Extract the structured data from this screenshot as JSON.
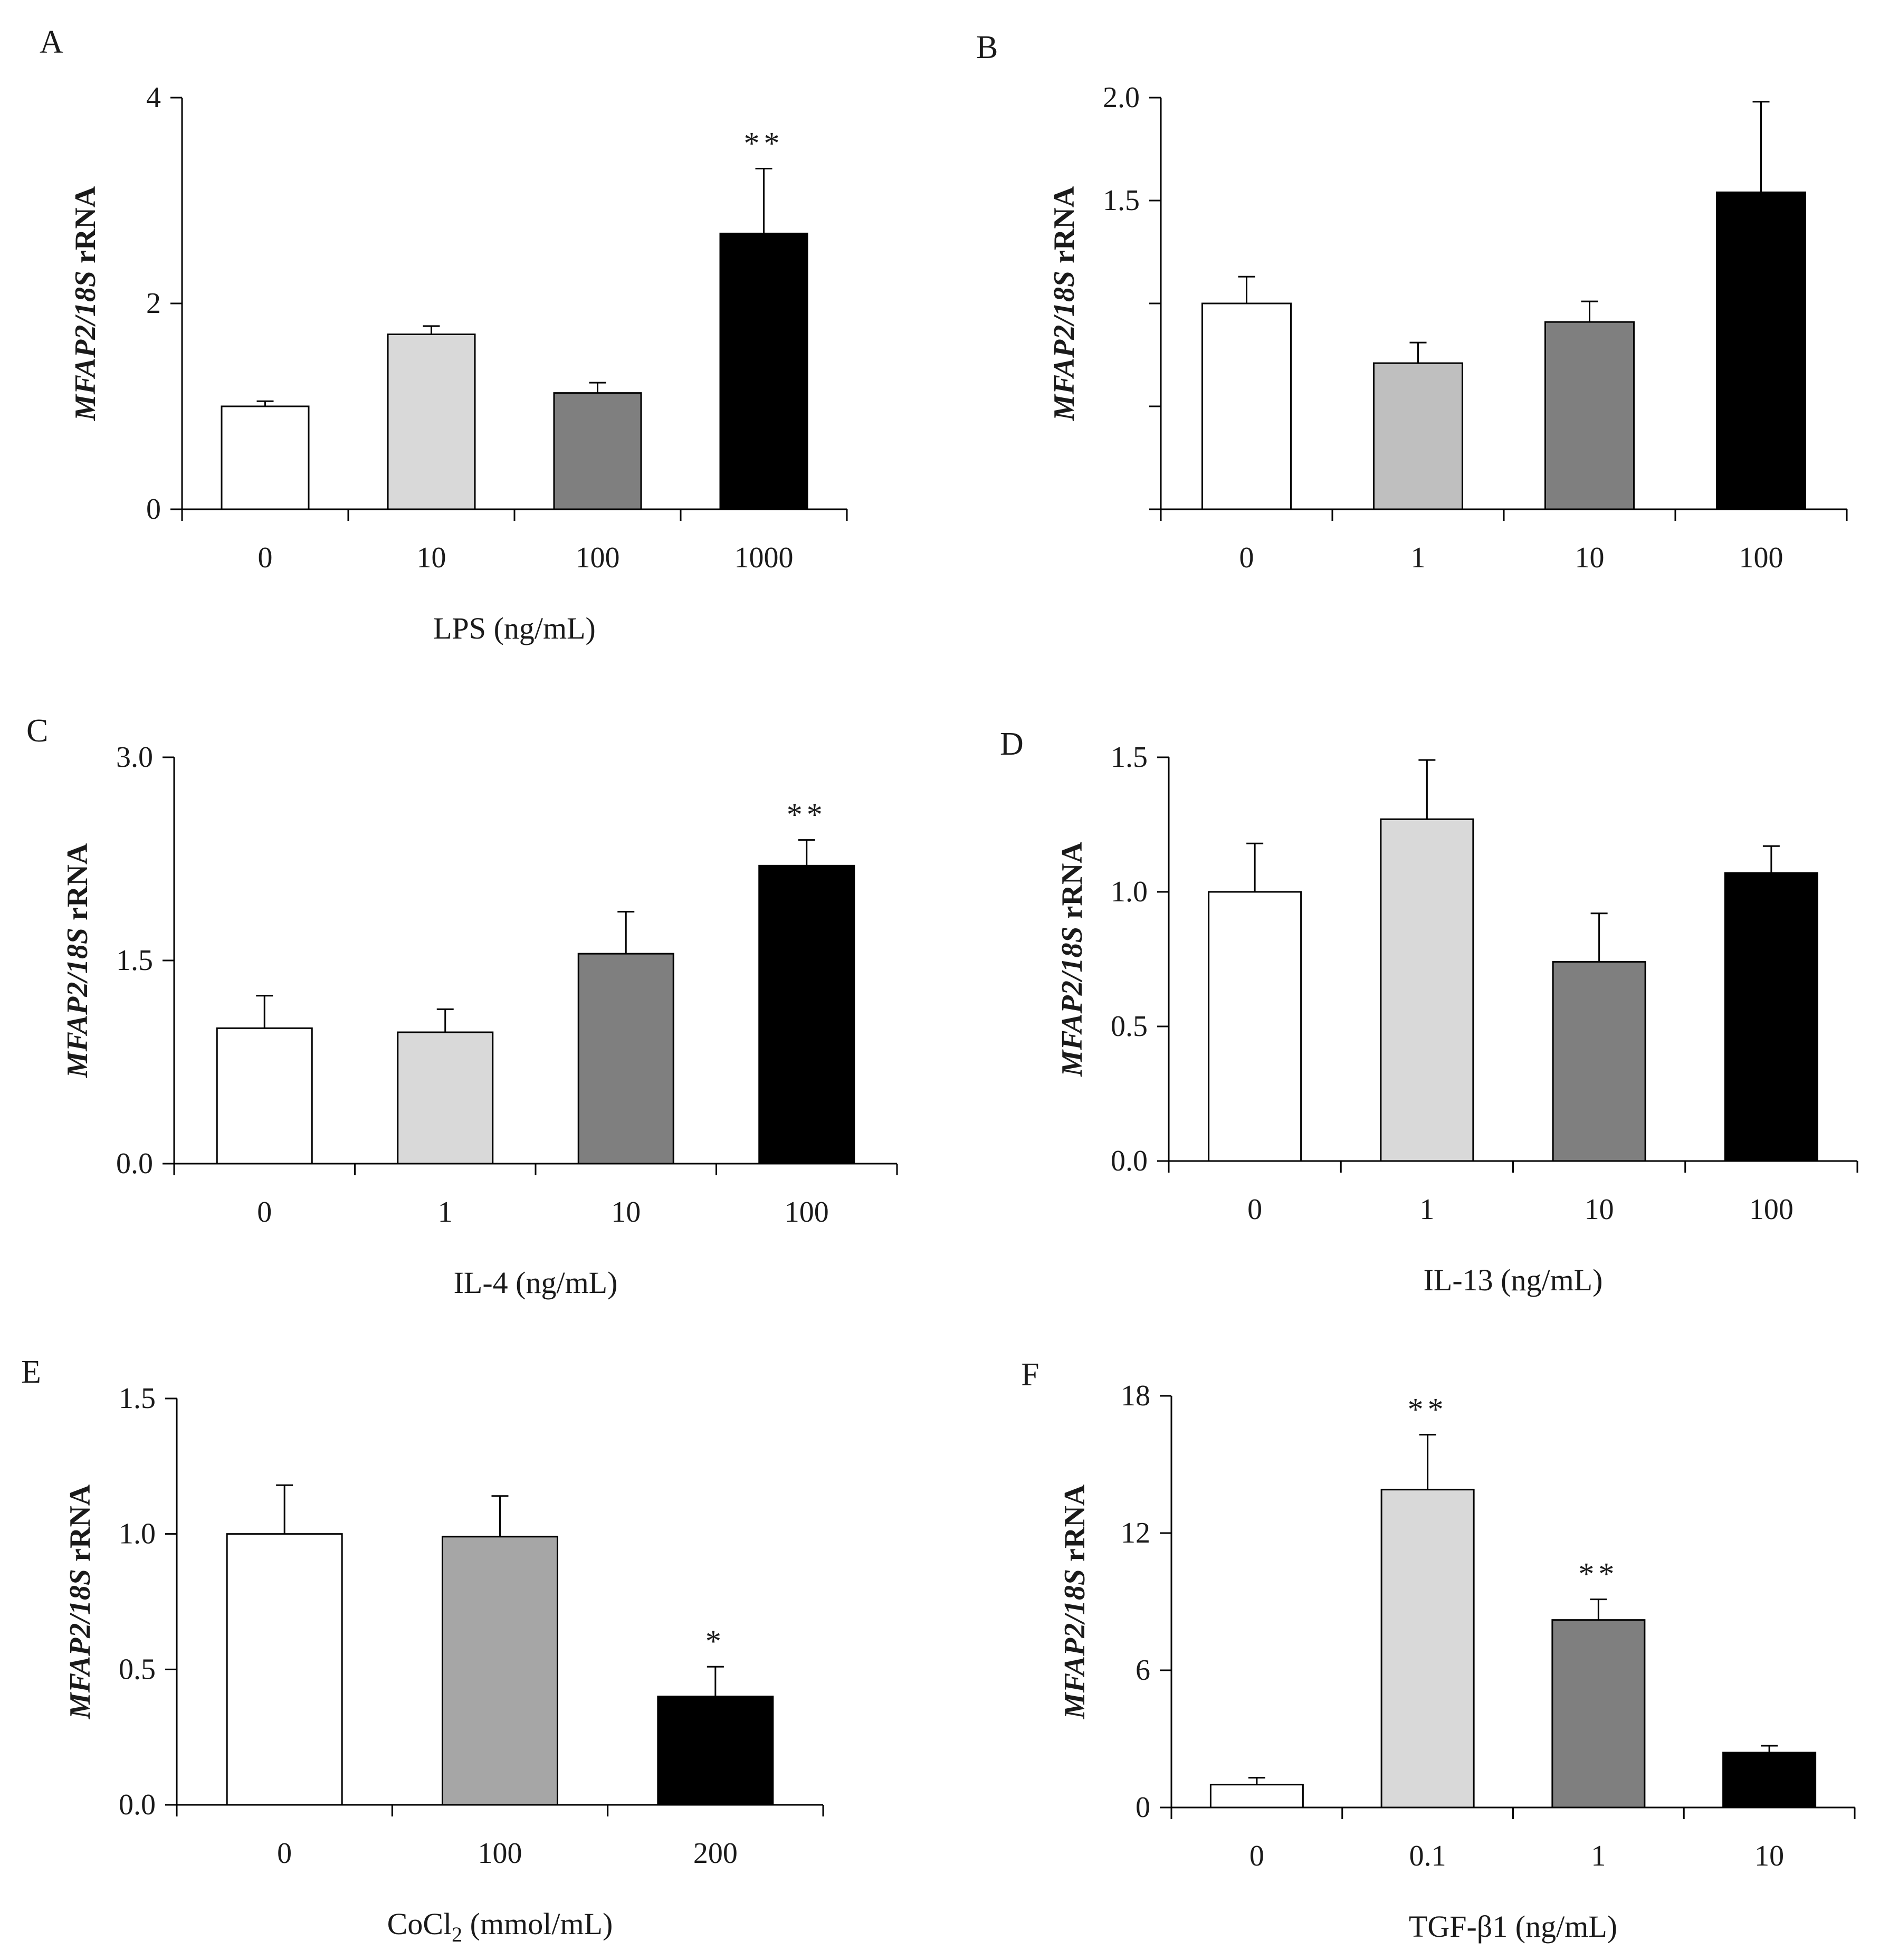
{
  "chart_data": [
    {
      "panel_label": "A",
      "type": "bar",
      "categories": [
        "0",
        "10",
        "100",
        "1000"
      ],
      "values": [
        1.0,
        1.7,
        1.13,
        2.68
      ],
      "errors": [
        0.05,
        0.08,
        0.1,
        0.63
      ],
      "significance": [
        "",
        "",
        "",
        "**"
      ],
      "colors": [
        "#ffffff",
        "#d9d9d9",
        "#7f7f7f",
        "#000000"
      ],
      "ylim": [
        0,
        4
      ],
      "yticks": [
        0,
        2,
        4
      ],
      "ytick_labels": [
        "0",
        "2",
        "4"
      ],
      "ylabel_italic": "MFAP2/18S",
      "ylabel_rest": " rRNA",
      "xlabel": "LPS (ng/mL)",
      "grid": false
    },
    {
      "panel_label": "B",
      "type": "bar",
      "categories": [
        "0",
        "1",
        "10",
        "100"
      ],
      "values": [
        1.0,
        0.71,
        0.91,
        1.54
      ],
      "errors": [
        0.13,
        0.1,
        0.1,
        0.44
      ],
      "significance": [
        "",
        "",
        "",
        ""
      ],
      "colors": [
        "#ffffff",
        "#bfbfbf",
        "#7f7f7f",
        "#000000"
      ],
      "ylim": [
        0,
        2.0
      ],
      "yticks": [
        0,
        0.5,
        1.0,
        1.5,
        2.0
      ],
      "ytick_labels": [
        "",
        "",
        "",
        "1.5",
        "2.0"
      ],
      "ylabel_italic": "MFAP2/18S",
      "ylabel_rest": " rRNA",
      "xlabel": "",
      "grid": false
    },
    {
      "panel_label": "C",
      "type": "bar",
      "categories": [
        "0",
        "1",
        "10",
        "100"
      ],
      "values": [
        1.0,
        0.97,
        1.55,
        2.2
      ],
      "errors": [
        0.24,
        0.17,
        0.31,
        0.19
      ],
      "significance": [
        "",
        "",
        "",
        "**"
      ],
      "colors": [
        "#ffffff",
        "#d9d9d9",
        "#7f7f7f",
        "#000000"
      ],
      "ylim": [
        0,
        3.0
      ],
      "yticks": [
        0,
        1.5,
        3.0
      ],
      "ytick_labels": [
        "0.0",
        "1.5",
        "3.0"
      ],
      "ylabel_italic": "MFAP2/18S",
      "ylabel_rest": " rRNA",
      "xlabel": "IL-4 (ng/mL)",
      "grid": false
    },
    {
      "panel_label": "D",
      "type": "bar",
      "categories": [
        "0",
        "1",
        "10",
        "100"
      ],
      "values": [
        1.0,
        1.27,
        0.74,
        1.07
      ],
      "errors": [
        0.18,
        0.22,
        0.18,
        0.1
      ],
      "significance": [
        "",
        "",
        "",
        ""
      ],
      "colors": [
        "#ffffff",
        "#d9d9d9",
        "#7f7f7f",
        "#000000"
      ],
      "ylim": [
        0,
        1.5
      ],
      "yticks": [
        0,
        0.5,
        1.0,
        1.5
      ],
      "ytick_labels": [
        "0.0",
        "0.5",
        "1.0",
        "1.5"
      ],
      "ylabel_italic": "MFAP2/18S",
      "ylabel_rest": " rRNA",
      "xlabel": "IL-13 (ng/mL)",
      "grid": false
    },
    {
      "panel_label": "E",
      "type": "bar",
      "categories": [
        "0",
        "100",
        "200"
      ],
      "values": [
        1.0,
        0.99,
        0.4
      ],
      "errors": [
        0.18,
        0.15,
        0.11
      ],
      "significance": [
        "",
        "",
        "*"
      ],
      "colors": [
        "#ffffff",
        "#a6a6a6",
        "#000000"
      ],
      "ylim": [
        0,
        1.5
      ],
      "yticks": [
        0,
        0.5,
        1.0,
        1.5
      ],
      "ytick_labels": [
        "0.0",
        "0.5",
        "1.0",
        "1.5"
      ],
      "ylabel_italic": "MFAP2/18S",
      "ylabel_rest": " rRNA",
      "xlabel_main": "CoCl",
      "xlabel_sub": "2",
      "xlabel_tail": " (mmol/mL)",
      "grid": false
    },
    {
      "panel_label": "F",
      "type": "bar",
      "categories": [
        "0",
        "0.1",
        "1",
        "10"
      ],
      "values": [
        1.0,
        13.9,
        8.2,
        2.4
      ],
      "errors": [
        0.3,
        2.4,
        0.9,
        0.3
      ],
      "significance": [
        "",
        "**",
        "**",
        ""
      ],
      "colors": [
        "#ffffff",
        "#d9d9d9",
        "#7f7f7f",
        "#000000"
      ],
      "ylim": [
        0,
        18
      ],
      "yticks": [
        0,
        6,
        12,
        18
      ],
      "ytick_labels": [
        "0",
        "6",
        "12",
        "18"
      ],
      "ylabel_italic": "MFAP2/18S",
      "ylabel_rest": " rRNA",
      "xlabel": "TGF-β1 (ng/mL)",
      "grid": false
    }
  ]
}
